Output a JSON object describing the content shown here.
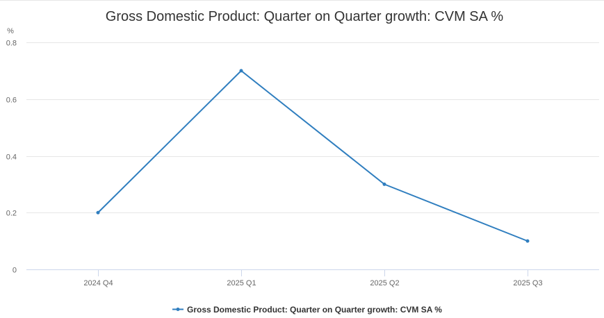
{
  "chart_data": {
    "type": "line",
    "title": "Gross Domestic Product: Quarter on Quarter growth: CVM SA %",
    "xlabel": "",
    "ylabel": "%",
    "categories": [
      "2024 Q4",
      "2025 Q1",
      "2025 Q2",
      "2025 Q3"
    ],
    "series": [
      {
        "name": "Gross Domestic Product: Quarter on Quarter growth: CVM SA %",
        "values": [
          0.2,
          0.7,
          0.3,
          0.1
        ],
        "color": "#2f7ebf"
      }
    ],
    "ylim": [
      0,
      0.8
    ],
    "yticks": [
      0,
      0.2,
      0.4,
      0.6,
      0.8
    ],
    "ytick_labels": [
      "0",
      "0.2",
      "0.4",
      "0.6",
      "0.8"
    ],
    "grid": true,
    "legend": "bottom-center"
  }
}
